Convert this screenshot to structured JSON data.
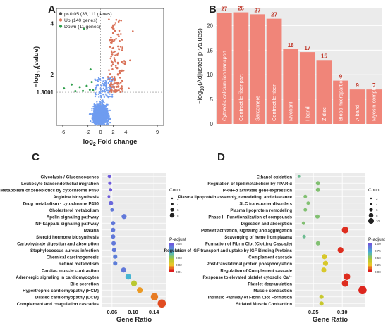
{
  "panels": {
    "a": "A",
    "b": "B",
    "c": "C",
    "d": "D"
  },
  "chart_data": [
    {
      "id": "A",
      "type": "scatter",
      "title": "",
      "xlabel": "log2 Fold change",
      "ylabel": "-log10(value)",
      "xlim": [
        -7,
        10
      ],
      "ylim": [
        0,
        4.6
      ],
      "xticks": [
        -6,
        -2,
        0,
        2,
        4,
        9
      ],
      "yticks": [
        2,
        4
      ],
      "threshold_y": 1.3001,
      "threshold_label": "1.3001",
      "legend_position": "top-left",
      "legend": [
        {
          "label": "p<0.05 (33,111 genes)",
          "color": "#4a4a4a"
        },
        {
          "label": "Up (140 genes)",
          "color": "#e07b5e"
        },
        {
          "label": "Down (11 genes)",
          "color": "#2e9e4b"
        }
      ],
      "series": [
        {
          "name": "p<0.05 (33,111 genes)",
          "color": "#6f9cf0",
          "count": 33111
        },
        {
          "name": "Up (140 genes)",
          "color": "#d9735a",
          "count": 140
        },
        {
          "name": "Down (11 genes)",
          "color": "#2e9e4b",
          "count": 11
        }
      ]
    },
    {
      "id": "B",
      "type": "bar",
      "title": "",
      "xlabel": "",
      "ylabel": "-log10(Adjusted p-values)",
      "ylim": [
        0,
        23.5
      ],
      "yticks": [
        0,
        5,
        10,
        15,
        20
      ],
      "grid": true,
      "bar_color": "#f08579",
      "categories": [
        "Cytosolic calcium ion transport",
        "Contractile fiber part",
        "Sarcomere",
        "Contractile fiber",
        "Myofibril",
        "I band",
        "Z disc",
        "Blood microparticle",
        "A band",
        "Myosin complex"
      ],
      "values": [
        22.6,
        22.7,
        22.3,
        21.4,
        15.2,
        14.6,
        13.0,
        8.8,
        7.0,
        7.0
      ],
      "labels": [
        "27",
        "26",
        "27",
        "27",
        "18",
        "17",
        "15",
        "9",
        "9",
        "7"
      ]
    },
    {
      "id": "C",
      "type": "scatter",
      "title": "",
      "xlabel": "Gene Ratio",
      "ylabel": "",
      "xlim": [
        0.04,
        0.164
      ],
      "xticks": [
        0.06,
        0.1,
        0.14
      ],
      "xticklabels": [
        "0.06",
        "0.10",
        "0.14"
      ],
      "size_legend": {
        "title": "Count",
        "labels": [
          "2",
          "4",
          "6",
          "8"
        ]
      },
      "color_legend": {
        "title": "P-adjust",
        "labels": [
          "0.05",
          "0.04",
          "0.03",
          "0.02",
          "0.01"
        ]
      },
      "categories": [
        "Glycolysis / Gluconeogenes",
        "Leukocyte transendothelial migration",
        "Metabolism of xenobiotics by cytochrome P450",
        "Arginine biosynthesis",
        "Drug metabolism - cytochrome P450",
        "Cholesterol metabolism",
        "Apelin signaling pathway",
        "NF-kappa B signaling pathway",
        "Malaria",
        "Steroid hormone biosynthesis",
        "Carbohydrate digestion and absorption",
        "Staphylococcus aureus infection",
        "Chemical carcinogenesis",
        "Retinol metabolism",
        "Cardiac muscle contraction",
        "Adrenergic signaling in cardiomyocytes",
        "Bile secretion",
        "Hypertrophic cardiomyopathy (HCM)",
        "Dilated cardiomyopathy (DCM)",
        "Complement and coagulation cascades"
      ],
      "x": [
        0.055,
        0.056,
        0.057,
        0.054,
        0.058,
        0.06,
        0.083,
        0.062,
        0.062,
        0.062,
        0.063,
        0.064,
        0.066,
        0.066,
        0.082,
        0.091,
        0.102,
        0.113,
        0.141,
        0.155
      ],
      "count": [
        2,
        2,
        2,
        1,
        3,
        2,
        4,
        3,
        3,
        3,
        3,
        3,
        3,
        3,
        4,
        5,
        5,
        5,
        7,
        8
      ],
      "p_adjust": [
        0.05,
        0.05,
        0.05,
        0.05,
        0.048,
        0.045,
        0.045,
        0.045,
        0.045,
        0.045,
        0.045,
        0.045,
        0.044,
        0.044,
        0.045,
        0.035,
        0.02,
        0.008,
        0.006,
        0.003
      ]
    },
    {
      "id": "D",
      "type": "scatter",
      "title": "",
      "xlabel": "Gene Ratio",
      "ylabel": "",
      "xlim": [
        0.018,
        0.14
      ],
      "xticks": [
        0.05,
        0.1
      ],
      "xticklabels": [
        "0.05",
        "0.10"
      ],
      "size_legend": {
        "title": "Count",
        "labels": [
          "2",
          "4",
          "6",
          "8",
          "10"
        ]
      },
      "color_legend": {
        "title": "P-adjust",
        "labels": [
          "1.00",
          "0.75",
          "0.50",
          "0.25",
          "0.00"
        ]
      },
      "categories": [
        "Ethanol oxidation",
        "Regulation of lipid metabolism by PPAR-α",
        "PPAR-α activates gene expression",
        "Plasma lipoprotein assembly, remodeling, and clearance",
        "SLC transporter disorders",
        "Plasma lipoprotein remodeling",
        "Phase I - Functionalization of compounds",
        "Digestion and absorption",
        "Platelet activation, signaling and aggregation",
        "Scavenging of heme from plasma",
        "Formation of Fibrin Clot (Clotting Cascade)",
        "Regulation of IGF transport and uptake by IGF Binding Proteins",
        "Complement cascade",
        "Post-translational protein phosphorylation",
        "Regulation of Complement cascade",
        "Response to elevated platelet cytosolic Ca²⁺",
        "Platelet degranulation",
        "Muscle contraction",
        "Intrinsic Pathway of Fibrin Clot Formation",
        "Striated Muscle Contraction"
      ],
      "x": [
        0.025,
        0.058,
        0.058,
        0.036,
        0.041,
        0.036,
        0.057,
        0.033,
        0.105,
        0.034,
        0.058,
        0.097,
        0.069,
        0.071,
        0.068,
        0.108,
        0.105,
        0.135,
        0.064,
        0.064
      ],
      "count": [
        1,
        3,
        3,
        2,
        2,
        2,
        3,
        2,
        6,
        2,
        3,
        5,
        4,
        4,
        4,
        6,
        6,
        8,
        3,
        3
      ],
      "p_adjust": [
        0.6,
        0.55,
        0.55,
        0.55,
        0.55,
        0.55,
        0.55,
        0.55,
        0.02,
        0.6,
        0.55,
        0.02,
        0.3,
        0.3,
        0.3,
        0.02,
        0.02,
        0.01,
        0.35,
        0.35
      ]
    }
  ]
}
